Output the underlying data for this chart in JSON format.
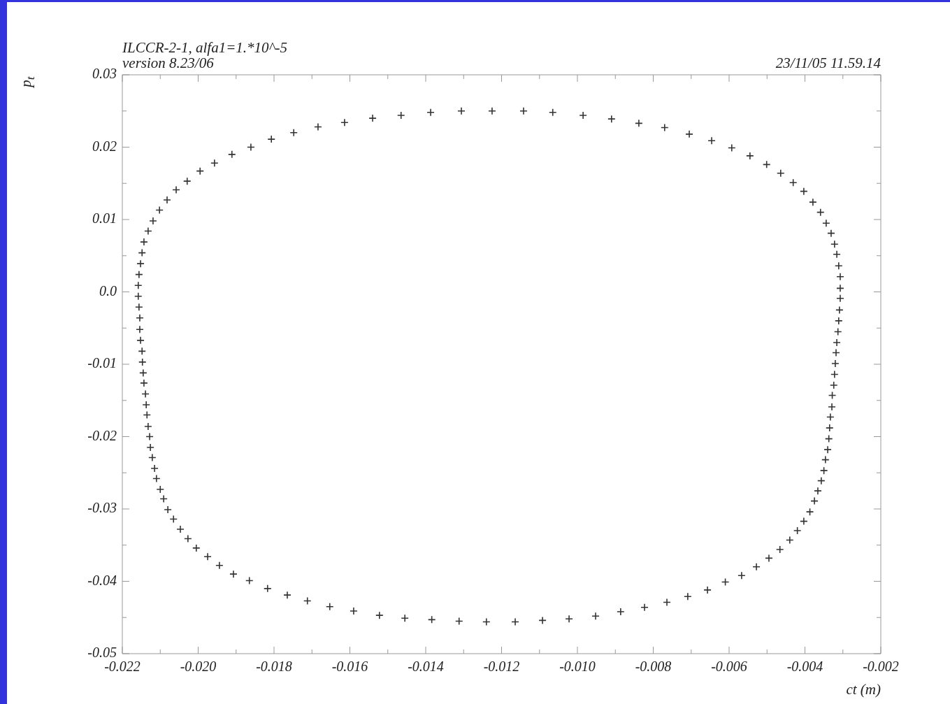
{
  "chart_data": {
    "type": "scatter",
    "title": "ILCCR-2-1, alfa1=1.*10^-5",
    "subtitle": "version 8.23/06",
    "annotations": [
      "23/11/05  11.59.14"
    ],
    "xlabel": "ct (m)",
    "ylabel": "p$_{t}$",
    "marker": "cross",
    "xlim": [
      -0.022,
      -0.002
    ],
    "ylim": [
      -0.05,
      0.03
    ],
    "xticks": [
      -0.022,
      {
        "value": -0.021,
        "label": null
      },
      {
        "value": -0.02,
        "label": "-0.020"
      },
      {
        "value": -0.019,
        "label": null
      },
      -0.018,
      {
        "value": -0.017,
        "label": null
      },
      -0.016,
      {
        "value": -0.015,
        "label": null
      },
      -0.014,
      {
        "value": -0.013,
        "label": null
      },
      -0.012,
      {
        "value": -0.011,
        "label": null
      },
      {
        "value": -0.01,
        "label": "-0.010"
      },
      {
        "value": -0.009,
        "label": null
      },
      -0.008,
      {
        "value": -0.007,
        "label": null
      },
      -0.006,
      {
        "value": -0.005,
        "label": null
      },
      -0.004,
      {
        "value": -0.003,
        "label": null
      },
      -0.002
    ],
    "yticks": [
      -0.05,
      {
        "value": -0.045,
        "label": null
      },
      -0.04,
      {
        "value": -0.035,
        "label": null
      },
      -0.03,
      {
        "value": -0.025,
        "label": null
      },
      -0.02,
      {
        "value": -0.015,
        "label": null
      },
      -0.01,
      {
        "value": -0.005,
        "label": null
      },
      {
        "value": 0,
        "label": "0.0"
      },
      {
        "value": 0.005,
        "label": null
      },
      0.01,
      {
        "value": 0.015,
        "label": null
      },
      0.02,
      {
        "value": 0.025,
        "label": null
      },
      0.03
    ],
    "series": [
      {
        "color": "#333333",
        "x": [
          -0.01225,
          -0.01306,
          -0.01387,
          -0.01465,
          -0.0154,
          -0.01614,
          -0.01684,
          -0.01748,
          -0.01807,
          -0.01861,
          -0.01911,
          -0.01957,
          -0.01995,
          -0.02029,
          -0.02058,
          -0.02082,
          -0.02102,
          -0.02119,
          -0.02132,
          -0.02143,
          -0.02148,
          -0.02152,
          -0.02156,
          -0.02158,
          -0.02158,
          -0.02156,
          -0.02154,
          -0.02154,
          -0.02152,
          -0.02148,
          -0.02147,
          -0.02145,
          -0.02143,
          -0.02139,
          -0.02137,
          -0.02135,
          -0.02132,
          -0.02128,
          -0.02126,
          -0.02121,
          -0.02115,
          -0.0211,
          -0.021,
          -0.02091,
          -0.0208,
          -0.02065,
          -0.02047,
          -0.02027,
          -0.02005,
          -0.01975,
          -0.01944,
          -0.01907,
          -0.01865,
          -0.01817,
          -0.01765,
          -0.01712,
          -0.01653,
          -0.0159,
          -0.01522,
          -0.01455,
          -0.01384,
          -0.01312,
          -0.0124,
          -0.01164,
          -0.01092,
          -0.01022,
          -0.00952,
          -0.00886,
          -0.00823,
          -0.00764,
          -0.00709,
          -0.00657,
          -0.0061,
          -0.00567,
          -0.00528,
          -0.00495,
          -0.00466,
          -0.0044,
          -0.0042,
          -0.00403,
          -0.00387,
          -0.00375,
          -0.00366,
          -0.00357,
          -0.0035,
          -0.00346,
          -0.0034,
          -0.00337,
          -0.00335,
          -0.00333,
          -0.00329,
          -0.00328,
          -0.00324,
          -0.00322,
          -0.0032,
          -0.00318,
          -0.00316,
          -0.00313,
          -0.00311,
          -0.00309,
          -0.00307,
          -0.00307,
          -0.00307,
          -0.00311,
          -0.00316,
          -0.00322,
          -0.00331,
          -0.00344,
          -0.00359,
          -0.00379,
          -0.00403,
          -0.00431,
          -0.00464,
          -0.00501,
          -0.00545,
          -0.00593,
          -0.00646,
          -0.00705,
          -0.0077,
          -0.00838,
          -0.0091,
          -0.00985,
          -0.01065,
          -0.01142
        ],
        "values": [
          0.025,
          0.025,
          0.0248,
          0.0244,
          0.024,
          0.0234,
          0.0228,
          0.022,
          0.0211,
          0.02,
          0.019,
          0.0178,
          0.0167,
          0.0153,
          0.0141,
          0.0127,
          0.0113,
          0.0098,
          0.0084,
          0.0069,
          0.0054,
          0.0039,
          0.0024,
          0.0009,
          -0.0006,
          -0.0021,
          -0.0036,
          -0.0052,
          -0.0067,
          -0.0082,
          -0.0097,
          -0.0112,
          -0.0126,
          -0.0141,
          -0.0156,
          -0.017,
          -0.0186,
          -0.02,
          -0.0215,
          -0.0229,
          -0.0244,
          -0.0258,
          -0.0273,
          -0.0286,
          -0.0301,
          -0.0314,
          -0.0328,
          -0.0341,
          -0.0354,
          -0.0366,
          -0.0378,
          -0.039,
          -0.0399,
          -0.041,
          -0.0419,
          -0.0427,
          -0.0435,
          -0.0441,
          -0.0447,
          -0.0451,
          -0.0453,
          -0.0455,
          -0.0456,
          -0.0456,
          -0.0454,
          -0.0452,
          -0.0448,
          -0.0442,
          -0.0436,
          -0.0429,
          -0.0421,
          -0.0412,
          -0.0401,
          -0.0392,
          -0.038,
          -0.0368,
          -0.0356,
          -0.0343,
          -0.033,
          -0.0317,
          -0.0304,
          -0.0289,
          -0.0275,
          -0.0261,
          -0.0247,
          -0.0232,
          -0.0218,
          -0.0203,
          -0.0188,
          -0.0173,
          -0.0159,
          -0.0143,
          -0.0129,
          -0.0114,
          -0.0099,
          -0.0084,
          -0.007,
          -0.0055,
          -0.004,
          -0.0025,
          -0.0009,
          0.0005,
          0.0021,
          0.0036,
          0.0052,
          0.0066,
          0.0081,
          0.0095,
          0.011,
          0.0124,
          0.0139,
          0.0151,
          0.0164,
          0.0176,
          0.0188,
          0.0199,
          0.0209,
          0.0218,
          0.0227,
          0.0233,
          0.0239,
          0.0244,
          0.0248,
          0.025
        ]
      }
    ]
  }
}
